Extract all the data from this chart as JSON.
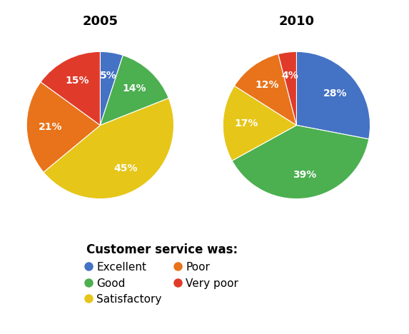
{
  "title_2005": "2005",
  "title_2010": "2010",
  "categories": [
    "Excellent",
    "Good",
    "Satisfactory",
    "Poor",
    "Very poor"
  ],
  "colors": {
    "Excellent": "#4472C4",
    "Good": "#4CAF50",
    "Satisfactory": "#E6C619",
    "Poor": "#E8731A",
    "Very poor": "#E03B2A"
  },
  "slice_order_2005": [
    "Excellent",
    "Good",
    "Satisfactory",
    "Poor",
    "Very poor"
  ],
  "values_2005": [
    5,
    14,
    45,
    21,
    15
  ],
  "slice_order_2010": [
    "Excellent",
    "Good",
    "Satisfactory",
    "Poor",
    "Very poor"
  ],
  "values_2010": [
    28,
    39,
    17,
    12,
    4
  ],
  "legend_title": "Customer service was:",
  "legend_col1": [
    "Excellent",
    "Satisfactory",
    "Very poor"
  ],
  "legend_col2": [
    "Good",
    "Poor"
  ],
  "background_color": "#ffffff",
  "label_fontsize": 10,
  "title_fontsize": 13,
  "legend_title_fontsize": 12,
  "legend_fontsize": 11
}
